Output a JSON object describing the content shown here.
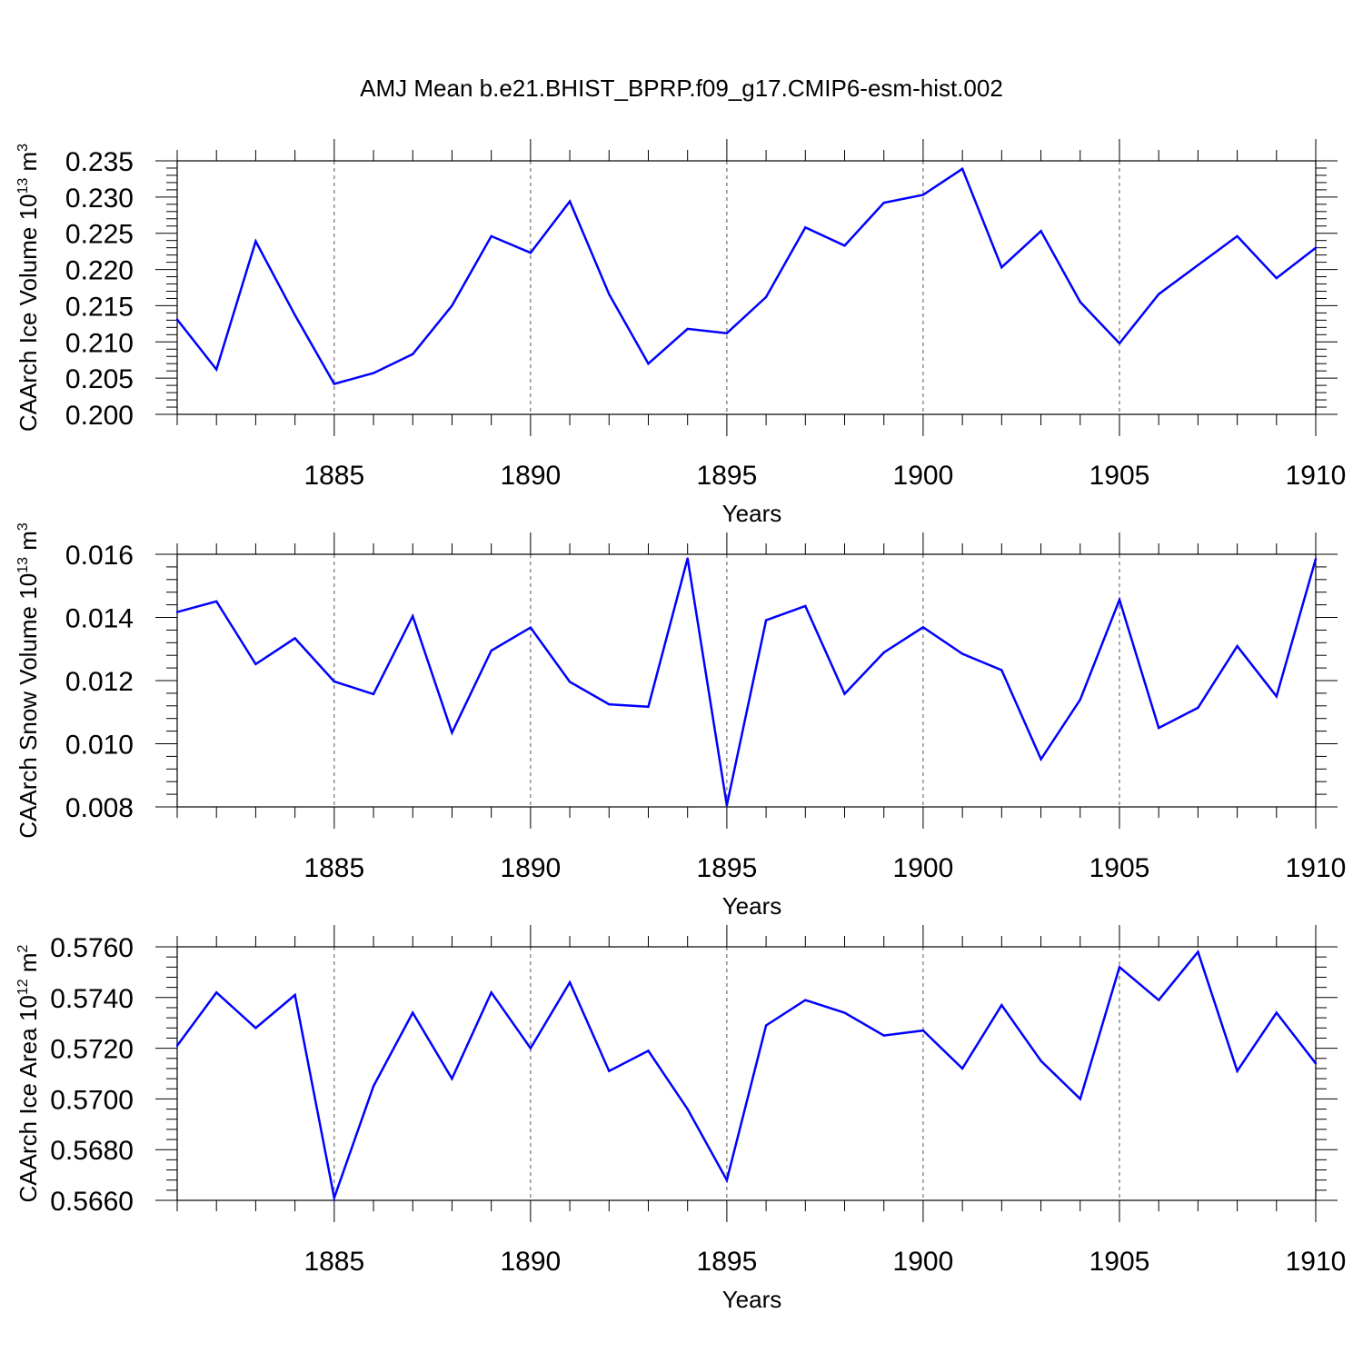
{
  "figure": {
    "title": "AMJ Mean b.e21.BHIST_BPRP.f09_g17.CMIP6-esm-hist.002"
  },
  "chart_data": [
    {
      "type": "line",
      "title": "AMJ Mean b.e21.BHIST_BPRP.f09_g17.CMIP6-esm-hist.002",
      "xlabel": "Years",
      "ylabel": "CAArch Ice Volume",
      "yunit_base": "10",
      "yunit_exp": "13",
      "yunit_symbol": "m",
      "yunit_power": "3",
      "xlim": [
        1881,
        1910
      ],
      "ylim": [
        0.2,
        0.235
      ],
      "xticks": [
        "1885",
        "1890",
        "1895",
        "1900",
        "1905",
        "1910"
      ],
      "yticks": [
        "0.200",
        "0.205",
        "0.210",
        "0.215",
        "0.220",
        "0.225",
        "0.230",
        "0.235"
      ],
      "grid": "vertical dashed at major x ticks",
      "line_color": "#0000ff",
      "x": [
        1881,
        1882,
        1883,
        1884,
        1885,
        1886,
        1887,
        1888,
        1889,
        1890,
        1891,
        1892,
        1893,
        1894,
        1895,
        1896,
        1897,
        1898,
        1899,
        1900,
        1901,
        1902,
        1903,
        1904,
        1905,
        1906,
        1907,
        1908,
        1909,
        1910
      ],
      "y": [
        0.2131,
        0.2062,
        0.2239,
        0.2137,
        0.2042,
        0.2057,
        0.2083,
        0.215,
        0.2246,
        0.2223,
        0.2294,
        0.2166,
        0.207,
        0.2118,
        0.2112,
        0.2162,
        0.2258,
        0.2233,
        0.2292,
        0.2303,
        0.2339,
        0.2203,
        0.2253,
        0.2155,
        0.2098,
        0.2166,
        0.2206,
        0.2246,
        0.2188,
        0.223
      ]
    },
    {
      "type": "line",
      "xlabel": "Years",
      "ylabel": "CAArch Snow Volume",
      "yunit_base": "10",
      "yunit_exp": "13",
      "yunit_symbol": "m",
      "yunit_power": "3",
      "xlim": [
        1881,
        1910
      ],
      "ylim": [
        0.008,
        0.016
      ],
      "xticks": [
        "1885",
        "1890",
        "1895",
        "1900",
        "1905",
        "1910"
      ],
      "yticks": [
        "0.008",
        "0.010",
        "0.012",
        "0.014",
        "0.016"
      ],
      "grid": "vertical dashed at major x ticks",
      "line_color": "#0000ff",
      "x": [
        1881,
        1882,
        1883,
        1884,
        1885,
        1886,
        1887,
        1888,
        1889,
        1890,
        1891,
        1892,
        1893,
        1894,
        1895,
        1896,
        1897,
        1898,
        1899,
        1900,
        1901,
        1902,
        1903,
        1904,
        1905,
        1906,
        1907,
        1908,
        1909,
        1910
      ],
      "y": [
        0.01417,
        0.01451,
        0.01252,
        0.01334,
        0.01197,
        0.01157,
        0.01404,
        0.01035,
        0.01295,
        0.01368,
        0.01196,
        0.01125,
        0.01117,
        0.01587,
        0.00805,
        0.01391,
        0.01436,
        0.01158,
        0.01289,
        0.01369,
        0.01285,
        0.01233,
        0.00951,
        0.0114,
        0.01456,
        0.0105,
        0.01114,
        0.01309,
        0.0115,
        0.01585
      ]
    },
    {
      "type": "line",
      "xlabel": "Years",
      "ylabel": "CAArch Ice Area",
      "yunit_base": "10",
      "yunit_exp": "12",
      "yunit_symbol": "m",
      "yunit_power": "2",
      "xlim": [
        1881,
        1910
      ],
      "ylim": [
        0.566,
        0.576
      ],
      "xticks": [
        "1885",
        "1890",
        "1895",
        "1900",
        "1905",
        "1910"
      ],
      "yticks": [
        "0.5660",
        "0.5680",
        "0.5700",
        "0.5720",
        "0.5740",
        "0.5760"
      ],
      "grid": "vertical dashed at major x ticks",
      "line_color": "#0000ff",
      "x": [
        1881,
        1882,
        1883,
        1884,
        1885,
        1886,
        1887,
        1888,
        1889,
        1890,
        1891,
        1892,
        1893,
        1894,
        1895,
        1896,
        1897,
        1898,
        1899,
        1900,
        1901,
        1902,
        1903,
        1904,
        1905,
        1906,
        1907,
        1908,
        1909,
        1910
      ],
      "y": [
        0.5721,
        0.5742,
        0.5728,
        0.5741,
        0.5661,
        0.5705,
        0.5734,
        0.5708,
        0.5742,
        0.572,
        0.5746,
        0.5711,
        0.5719,
        0.5696,
        0.5668,
        0.5729,
        0.5739,
        0.5734,
        0.5725,
        0.5727,
        0.5712,
        0.5737,
        0.5715,
        0.57,
        0.5752,
        0.5739,
        0.5758,
        0.5711,
        0.5734,
        0.5714
      ]
    }
  ]
}
